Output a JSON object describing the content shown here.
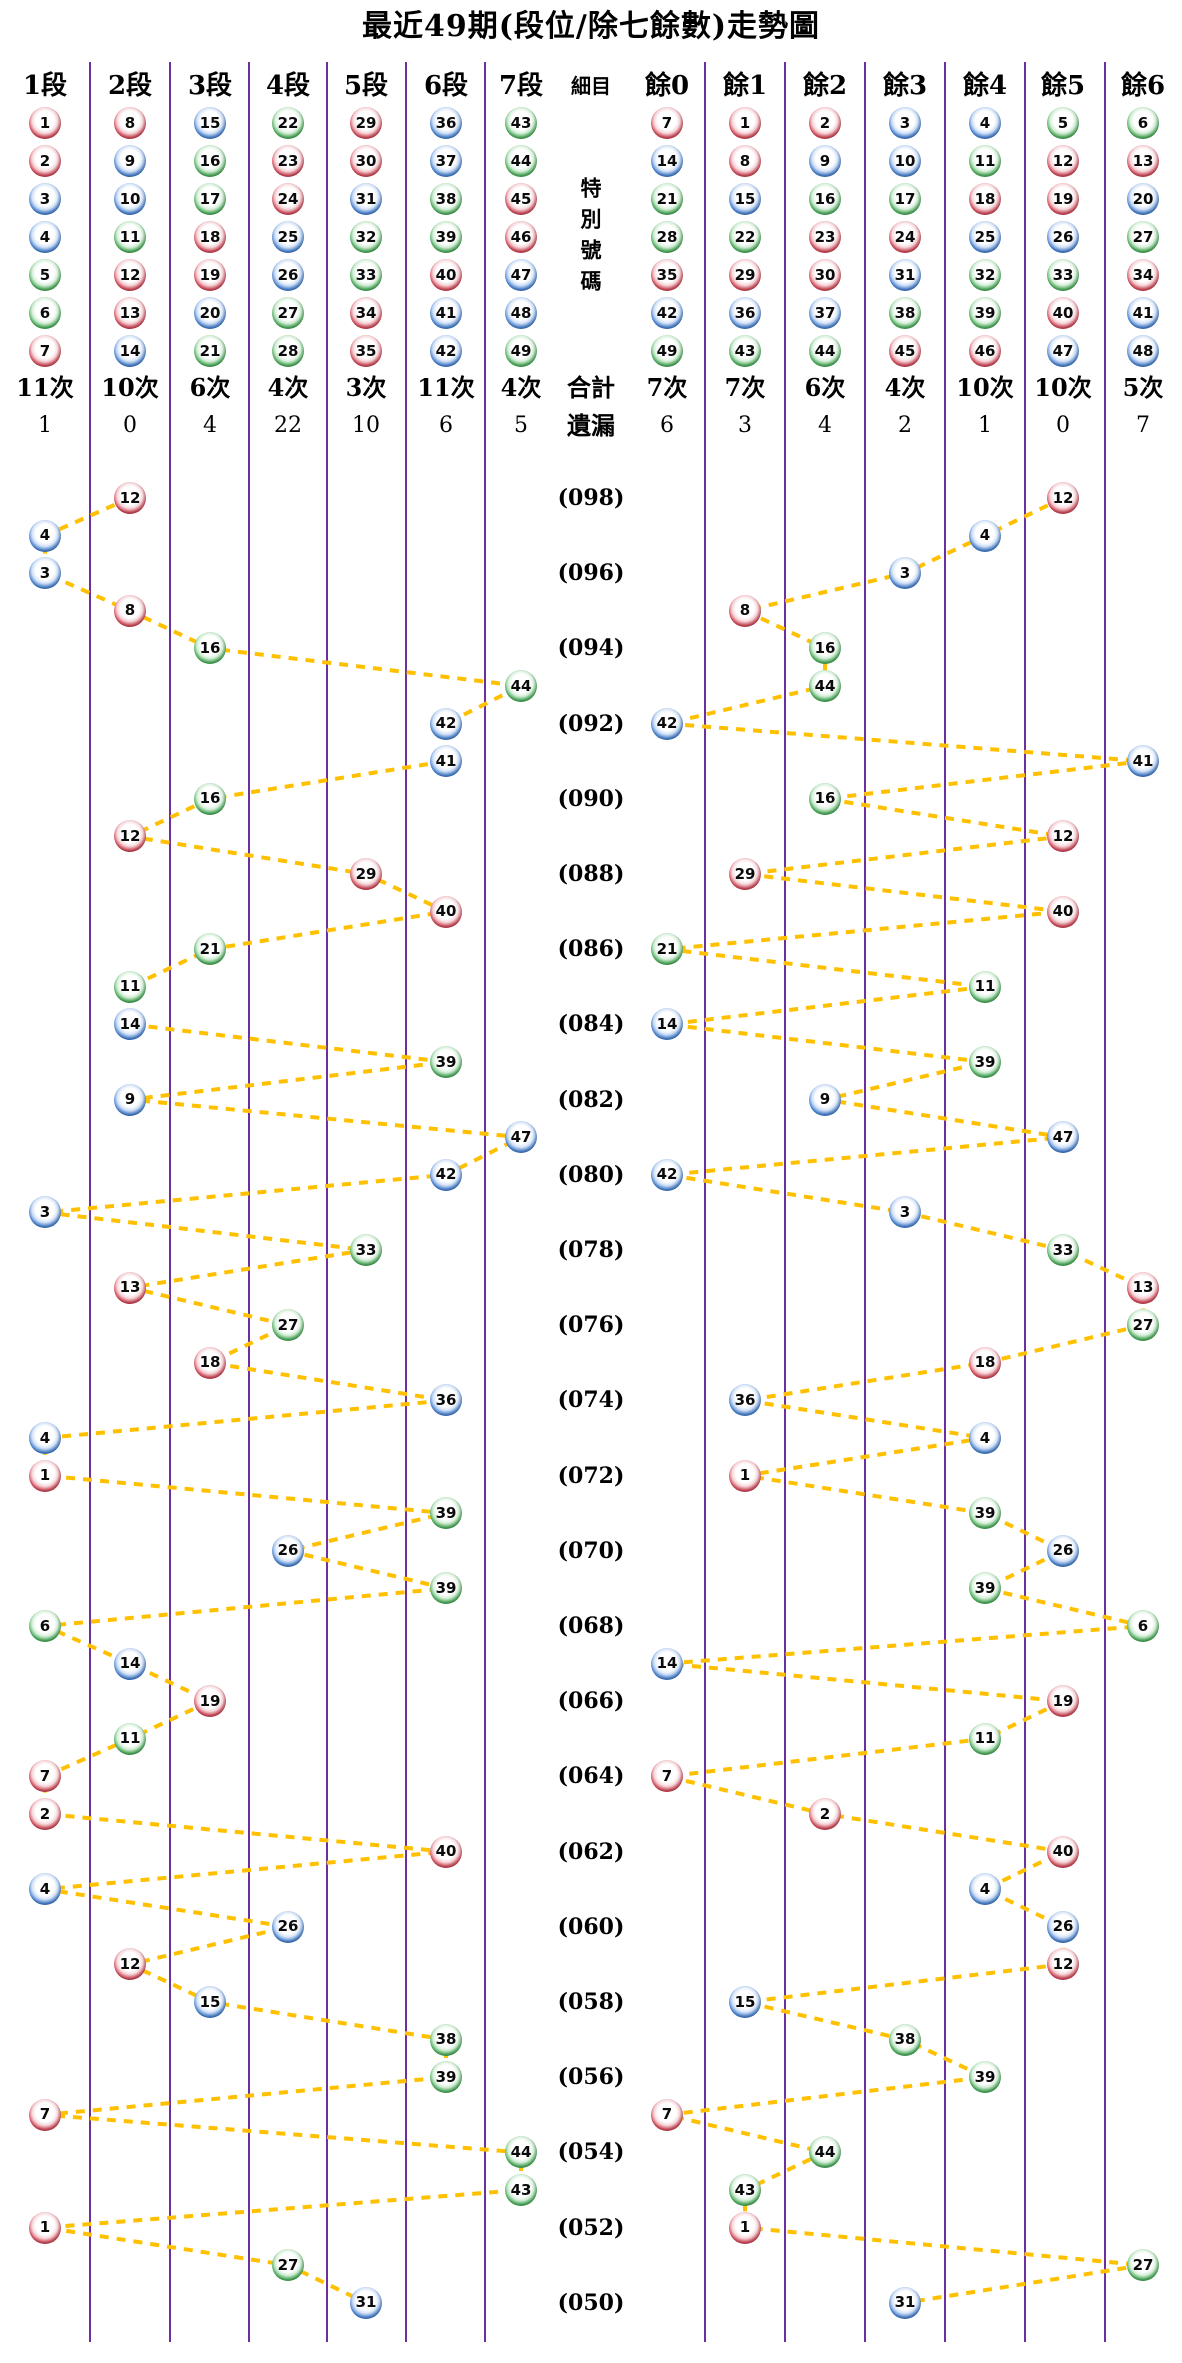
{
  "title": "最近49期(段位/除七餘數)走勢圖",
  "header": {
    "left": [
      "1段",
      "2段",
      "3段",
      "4段",
      "5段",
      "6段",
      "7段"
    ],
    "middle": "細目",
    "right": [
      "餘0",
      "餘1",
      "餘2",
      "餘3",
      "餘4",
      "餘5",
      "餘6"
    ]
  },
  "middle_labels": {
    "special": [
      "特",
      "別",
      "號",
      "碼"
    ],
    "total": "合計",
    "miss": "遺漏"
  },
  "grid": {
    "left_columns": [
      [
        1,
        2,
        3,
        4,
        5,
        6,
        7
      ],
      [
        8,
        9,
        10,
        11,
        12,
        13,
        14
      ],
      [
        15,
        16,
        17,
        18,
        19,
        20,
        21
      ],
      [
        22,
        23,
        24,
        25,
        26,
        27,
        28
      ],
      [
        29,
        30,
        31,
        32,
        33,
        34,
        35
      ],
      [
        36,
        37,
        38,
        39,
        40,
        41,
        42
      ],
      [
        43,
        44,
        45,
        46,
        47,
        48,
        49
      ]
    ],
    "right_columns": [
      [
        7,
        14,
        21,
        28,
        35,
        42,
        49
      ],
      [
        1,
        8,
        15,
        22,
        29,
        36,
        43
      ],
      [
        2,
        9,
        16,
        23,
        30,
        37,
        44
      ],
      [
        3,
        10,
        17,
        24,
        31,
        38,
        45
      ],
      [
        4,
        11,
        18,
        25,
        32,
        39,
        46
      ],
      [
        5,
        12,
        19,
        26,
        33,
        40,
        47
      ],
      [
        6,
        13,
        20,
        27,
        34,
        41,
        48
      ]
    ]
  },
  "totals": {
    "left": [
      "11次",
      "10次",
      "6次",
      "4次",
      "3次",
      "11次",
      "4次"
    ],
    "right": [
      "7次",
      "7次",
      "6次",
      "4次",
      "10次",
      "10次",
      "5次"
    ]
  },
  "missing": {
    "left": [
      "1",
      "0",
      "4",
      "22",
      "10",
      "6",
      "5"
    ],
    "right": [
      "6",
      "3",
      "4",
      "2",
      "1",
      "0",
      "7"
    ]
  },
  "ball_colors": {
    "red": [
      1,
      2,
      7,
      8,
      12,
      13,
      18,
      19,
      23,
      24,
      29,
      30,
      34,
      35,
      40,
      45,
      46
    ],
    "blue": [
      3,
      4,
      9,
      10,
      14,
      15,
      20,
      25,
      26,
      31,
      36,
      37,
      41,
      42,
      47,
      48
    ],
    "green": [
      5,
      6,
      11,
      16,
      17,
      21,
      22,
      27,
      28,
      32,
      33,
      38,
      39,
      43,
      44,
      49
    ]
  },
  "colors": {
    "divider_purple": "#6B2FA0",
    "connector_gold": "#FFC000",
    "ball_red": "#AD1226",
    "ball_blue": "#1350B0",
    "ball_green": "#1D8D33"
  },
  "chart_data": {
    "type": "scatter",
    "title": "最近49期(段位/除七餘數)走勢圖",
    "left_section": "段位 (segment = ceil(n/7), columns 1段-7段)",
    "right_section": "除七餘數 (remainder = n mod 7, columns 餘0-餘6)",
    "y_axis": "period numbers 098 down to 050, labels every 2 periods",
    "legend_position": "none",
    "grid": "purple vertical column dividers",
    "rows": [
      {
        "period": 98,
        "label": "(098)",
        "number": 12
      },
      {
        "period": 97,
        "number": 4
      },
      {
        "period": 96,
        "label": "(096)",
        "number": 3
      },
      {
        "period": 95,
        "number": 8
      },
      {
        "period": 94,
        "label": "(094)",
        "number": 16
      },
      {
        "period": 93,
        "number": 44
      },
      {
        "period": 92,
        "label": "(092)",
        "number": 42
      },
      {
        "period": 91,
        "number": 41
      },
      {
        "period": 90,
        "label": "(090)",
        "number": 16
      },
      {
        "period": 89,
        "number": 12
      },
      {
        "period": 88,
        "label": "(088)",
        "number": 29
      },
      {
        "period": 87,
        "number": 40
      },
      {
        "period": 86,
        "label": "(086)",
        "number": 21
      },
      {
        "period": 85,
        "number": 11
      },
      {
        "period": 84,
        "label": "(084)",
        "number": 14
      },
      {
        "period": 83,
        "number": 39
      },
      {
        "period": 82,
        "label": "(082)",
        "number": 9
      },
      {
        "period": 81,
        "number": 47
      },
      {
        "period": 80,
        "label": "(080)",
        "number": 42
      },
      {
        "period": 79,
        "number": 3
      },
      {
        "period": 78,
        "label": "(078)",
        "number": 33
      },
      {
        "period": 77,
        "number": 13
      },
      {
        "period": 76,
        "label": "(076)",
        "number": 27
      },
      {
        "period": 75,
        "number": 18
      },
      {
        "period": 74,
        "label": "(074)",
        "number": 36
      },
      {
        "period": 73,
        "number": 4
      },
      {
        "period": 72,
        "label": "(072)",
        "number": 1
      },
      {
        "period": 71,
        "number": 39
      },
      {
        "period": 70,
        "label": "(070)",
        "number": 26
      },
      {
        "period": 69,
        "number": 39
      },
      {
        "period": 68,
        "label": "(068)",
        "number": 6
      },
      {
        "period": 67,
        "number": 14
      },
      {
        "period": 66,
        "label": "(066)",
        "number": 19
      },
      {
        "period": 65,
        "number": 11
      },
      {
        "period": 64,
        "label": "(064)",
        "number": 7
      },
      {
        "period": 63,
        "number": 2
      },
      {
        "period": 62,
        "label": "(062)",
        "number": 40
      },
      {
        "period": 61,
        "number": 4
      },
      {
        "period": 60,
        "label": "(060)",
        "number": 26
      },
      {
        "period": 59,
        "number": 12
      },
      {
        "period": 58,
        "label": "(058)",
        "number": 15
      },
      {
        "period": 57,
        "number": 38
      },
      {
        "period": 56,
        "label": "(056)",
        "number": 39
      },
      {
        "period": 55,
        "number": 7
      },
      {
        "period": 54,
        "label": "(054)",
        "number": 44
      },
      {
        "period": 53,
        "number": 43
      },
      {
        "period": 52,
        "label": "(052)",
        "number": 1
      },
      {
        "period": 51,
        "number": 27
      },
      {
        "period": 50,
        "label": "(050)",
        "number": 31
      }
    ]
  }
}
